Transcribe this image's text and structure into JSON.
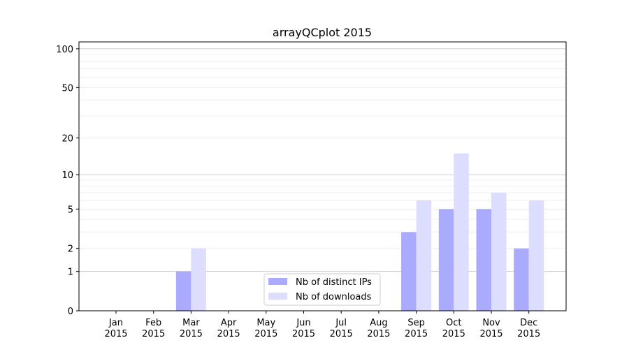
{
  "chart_data": {
    "type": "bar",
    "title": "arrayQCplot 2015",
    "xlabel": "",
    "ylabel": "",
    "yscale": "log(1+y)",
    "ylim": [
      0,
      113
    ],
    "yticks": [
      0,
      1,
      2,
      5,
      10,
      20,
      50,
      100
    ],
    "ytick_labels": [
      "0",
      "1",
      "2",
      "5",
      "10",
      "20",
      "50",
      "100"
    ],
    "grid": true,
    "legend_position": "lower-center",
    "categories": [
      "Jan\n2015",
      "Feb\n2015",
      "Mar\n2015",
      "Apr\n2015",
      "May\n2015",
      "Jun\n2015",
      "Jul\n2015",
      "Aug\n2015",
      "Sep\n2015",
      "Oct\n2015",
      "Nov\n2015",
      "Dec\n2015"
    ],
    "series": [
      {
        "name": "Nb of distinct IPs",
        "color": "#aaaaff",
        "values": [
          0,
          0,
          1,
          0,
          0,
          0,
          0,
          0,
          3,
          5,
          5,
          2
        ]
      },
      {
        "name": "Nb of downloads",
        "color": "#ddddff",
        "values": [
          0,
          0,
          2,
          0,
          0,
          0,
          0,
          0,
          6,
          15,
          7,
          6
        ]
      }
    ]
  }
}
